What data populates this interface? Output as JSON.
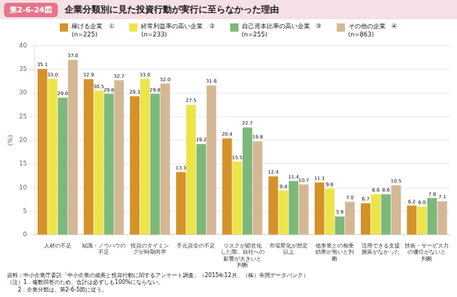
{
  "chart_data": {
    "type": "bar",
    "title": "企業分類別に見た投資行動が実行に至らなかった理由",
    "annotations": [
      "第2-6-24図"
    ],
    "footnotes": [
      "資料：中小企業庁委託「中小企業の成長と投資行動に関するアンケート調査」（2015年12月、（株）帝国データバンク）",
      "（注）1．複数回答のため、合計は必ずしも100%にならない。",
      "　　2．企業分類は、第2-6-5図に従う。"
    ],
    "ylabel": "(%)",
    "categories": [
      "人材の不足",
      "知識・ノウハウの\n不足",
      "投資のタイミン\nグが時期尚早",
      "手元資金の不足",
      "リスクが顕在化\nした際、自社への\n影響が大きいと\n判断",
      "市場変化が想定\n以上",
      "他事業との相乗\n効果が無いと判\n断",
      "活用できる支援\n施策がなかった",
      "技術・サービス力\nの優位がないと\n判断"
    ],
    "series": [
      {
        "name": "稼げる企業　①\n(n=225)",
        "color": "#D4922A",
        "values": [
          35.1,
          32.9,
          29.3,
          13.3,
          20.4,
          12.4,
          11.1,
          6.7,
          6.2
        ],
        "value_labels": [
          "35.1",
          "32.9",
          "29.3",
          "13.3",
          "20.4",
          "12.4",
          "11.1",
          "6.7",
          "6.2"
        ]
      },
      {
        "name": "経常利益率の高い企業　②\n(n=233)",
        "color": "#EDE44A",
        "values": [
          33.0,
          30.5,
          33.0,
          27.5,
          15.5,
          9.4,
          9.8,
          8.6,
          6.0
        ],
        "value_labels": [
          "33.0",
          "30.5",
          "33.0",
          "27.5",
          "15.5",
          "9.4",
          "9.8",
          "8.6",
          "6.0"
        ]
      },
      {
        "name": "自己資本比率の高い企業　③\n(n=255)",
        "color": "#7DB87A",
        "values": [
          29.0,
          29.8,
          29.8,
          19.2,
          22.7,
          11.4,
          3.9,
          8.6,
          7.8
        ],
        "value_labels": [
          "29.0",
          "29.8",
          "29.8",
          "19.2",
          "22.7",
          "11.4",
          "3.9",
          "8.6",
          "7.8"
        ]
      },
      {
        "name": "その他の企業　④\n(n=863)",
        "color": "#D4B896",
        "values": [
          37.0,
          32.7,
          32.0,
          31.6,
          19.8,
          10.7,
          7.0,
          10.5,
          7.1
        ],
        "value_labels": [
          "37.0",
          "32.7",
          "32.0",
          "31.6",
          "19.8",
          "10.7",
          "7.0",
          "10.5",
          "7.1"
        ]
      }
    ],
    "ylim": [
      0,
      40
    ],
    "yticks": [
      0,
      5,
      10,
      15,
      20,
      25,
      30,
      35,
      40
    ],
    "grid": true,
    "legend": "top",
    "data_labels": true
  }
}
